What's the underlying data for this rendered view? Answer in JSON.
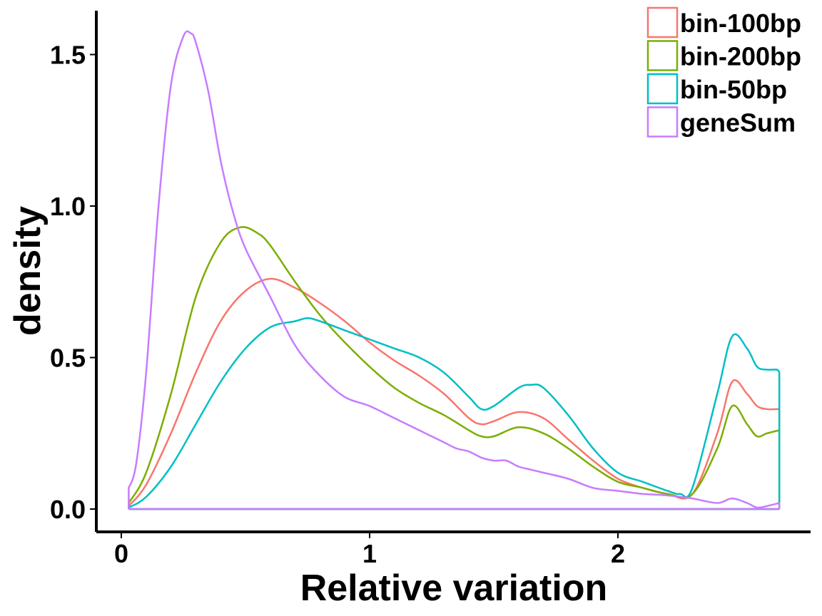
{
  "chart_data": {
    "type": "line",
    "subtype": "density",
    "xlabel": "Relative variation",
    "ylabel": "density",
    "xlim": [
      -0.1,
      2.77
    ],
    "ylim": [
      -0.075,
      1.64
    ],
    "xticks": [
      0,
      1,
      2
    ],
    "xtick_labels": [
      "0",
      "1",
      "2"
    ],
    "yticks": [
      0.0,
      0.5,
      1.0,
      1.5
    ],
    "ytick_labels": [
      "0.0",
      "0.5",
      "1.0",
      "1.5"
    ],
    "grid": false,
    "legend_position": "top-right",
    "series": [
      {
        "name": "bin-100bp",
        "color": "#F8766D",
        "x": [
          0.03,
          0.1,
          0.2,
          0.3,
          0.4,
          0.5,
          0.6,
          0.7,
          0.8,
          0.9,
          1.0,
          1.1,
          1.2,
          1.3,
          1.4,
          1.45,
          1.5,
          1.6,
          1.7,
          1.8,
          1.9,
          2.0,
          2.1,
          2.2,
          2.3,
          2.4,
          2.46,
          2.52,
          2.56,
          2.6,
          2.65
        ],
        "y": [
          0.01,
          0.08,
          0.25,
          0.45,
          0.62,
          0.72,
          0.76,
          0.73,
          0.68,
          0.62,
          0.55,
          0.49,
          0.44,
          0.38,
          0.3,
          0.28,
          0.29,
          0.32,
          0.3,
          0.23,
          0.16,
          0.1,
          0.07,
          0.05,
          0.05,
          0.25,
          0.42,
          0.38,
          0.34,
          0.33,
          0.33
        ]
      },
      {
        "name": "bin-200bp",
        "color": "#7CAE00",
        "x": [
          0.03,
          0.1,
          0.2,
          0.3,
          0.4,
          0.48,
          0.55,
          0.6,
          0.7,
          0.8,
          0.9,
          1.0,
          1.1,
          1.2,
          1.3,
          1.4,
          1.45,
          1.5,
          1.6,
          1.7,
          1.8,
          1.9,
          2.0,
          2.1,
          2.2,
          2.3,
          2.4,
          2.46,
          2.52,
          2.56,
          2.6,
          2.65
        ],
        "y": [
          0.02,
          0.12,
          0.38,
          0.7,
          0.88,
          0.93,
          0.91,
          0.87,
          0.75,
          0.64,
          0.55,
          0.47,
          0.4,
          0.35,
          0.31,
          0.26,
          0.24,
          0.24,
          0.27,
          0.25,
          0.2,
          0.14,
          0.09,
          0.07,
          0.05,
          0.05,
          0.2,
          0.34,
          0.28,
          0.24,
          0.25,
          0.26
        ]
      },
      {
        "name": "bin-50bp",
        "color": "#00BFC4",
        "x": [
          0.03,
          0.1,
          0.2,
          0.3,
          0.4,
          0.5,
          0.6,
          0.7,
          0.75,
          0.8,
          0.9,
          1.0,
          1.1,
          1.2,
          1.3,
          1.4,
          1.45,
          1.5,
          1.6,
          1.65,
          1.7,
          1.8,
          1.9,
          2.0,
          2.1,
          2.2,
          2.25,
          2.3,
          2.4,
          2.46,
          2.52,
          2.56,
          2.6,
          2.64,
          2.65
        ],
        "y": [
          0.005,
          0.04,
          0.14,
          0.28,
          0.42,
          0.53,
          0.6,
          0.62,
          0.63,
          0.62,
          0.59,
          0.56,
          0.53,
          0.5,
          0.45,
          0.37,
          0.33,
          0.34,
          0.4,
          0.41,
          0.4,
          0.31,
          0.2,
          0.12,
          0.09,
          0.06,
          0.05,
          0.07,
          0.38,
          0.57,
          0.53,
          0.47,
          0.46,
          0.46,
          0.45
        ]
      },
      {
        "name": "geneSum",
        "color": "#C77CFF",
        "x": [
          0.03,
          0.06,
          0.1,
          0.15,
          0.2,
          0.25,
          0.28,
          0.3,
          0.35,
          0.4,
          0.45,
          0.5,
          0.6,
          0.7,
          0.8,
          0.9,
          1.0,
          1.1,
          1.2,
          1.3,
          1.35,
          1.4,
          1.45,
          1.5,
          1.55,
          1.6,
          1.65,
          1.7,
          1.8,
          1.9,
          2.0,
          2.1,
          2.2,
          2.3,
          2.4,
          2.46,
          2.52,
          2.56,
          2.6,
          2.65
        ],
        "y": [
          0.07,
          0.15,
          0.45,
          1.0,
          1.4,
          1.56,
          1.57,
          1.54,
          1.38,
          1.15,
          0.98,
          0.86,
          0.7,
          0.54,
          0.44,
          0.37,
          0.34,
          0.3,
          0.26,
          0.22,
          0.2,
          0.19,
          0.17,
          0.16,
          0.16,
          0.14,
          0.13,
          0.12,
          0.1,
          0.07,
          0.06,
          0.05,
          0.045,
          0.035,
          0.02,
          0.035,
          0.02,
          0.005,
          0.01,
          0.02
        ]
      }
    ]
  }
}
